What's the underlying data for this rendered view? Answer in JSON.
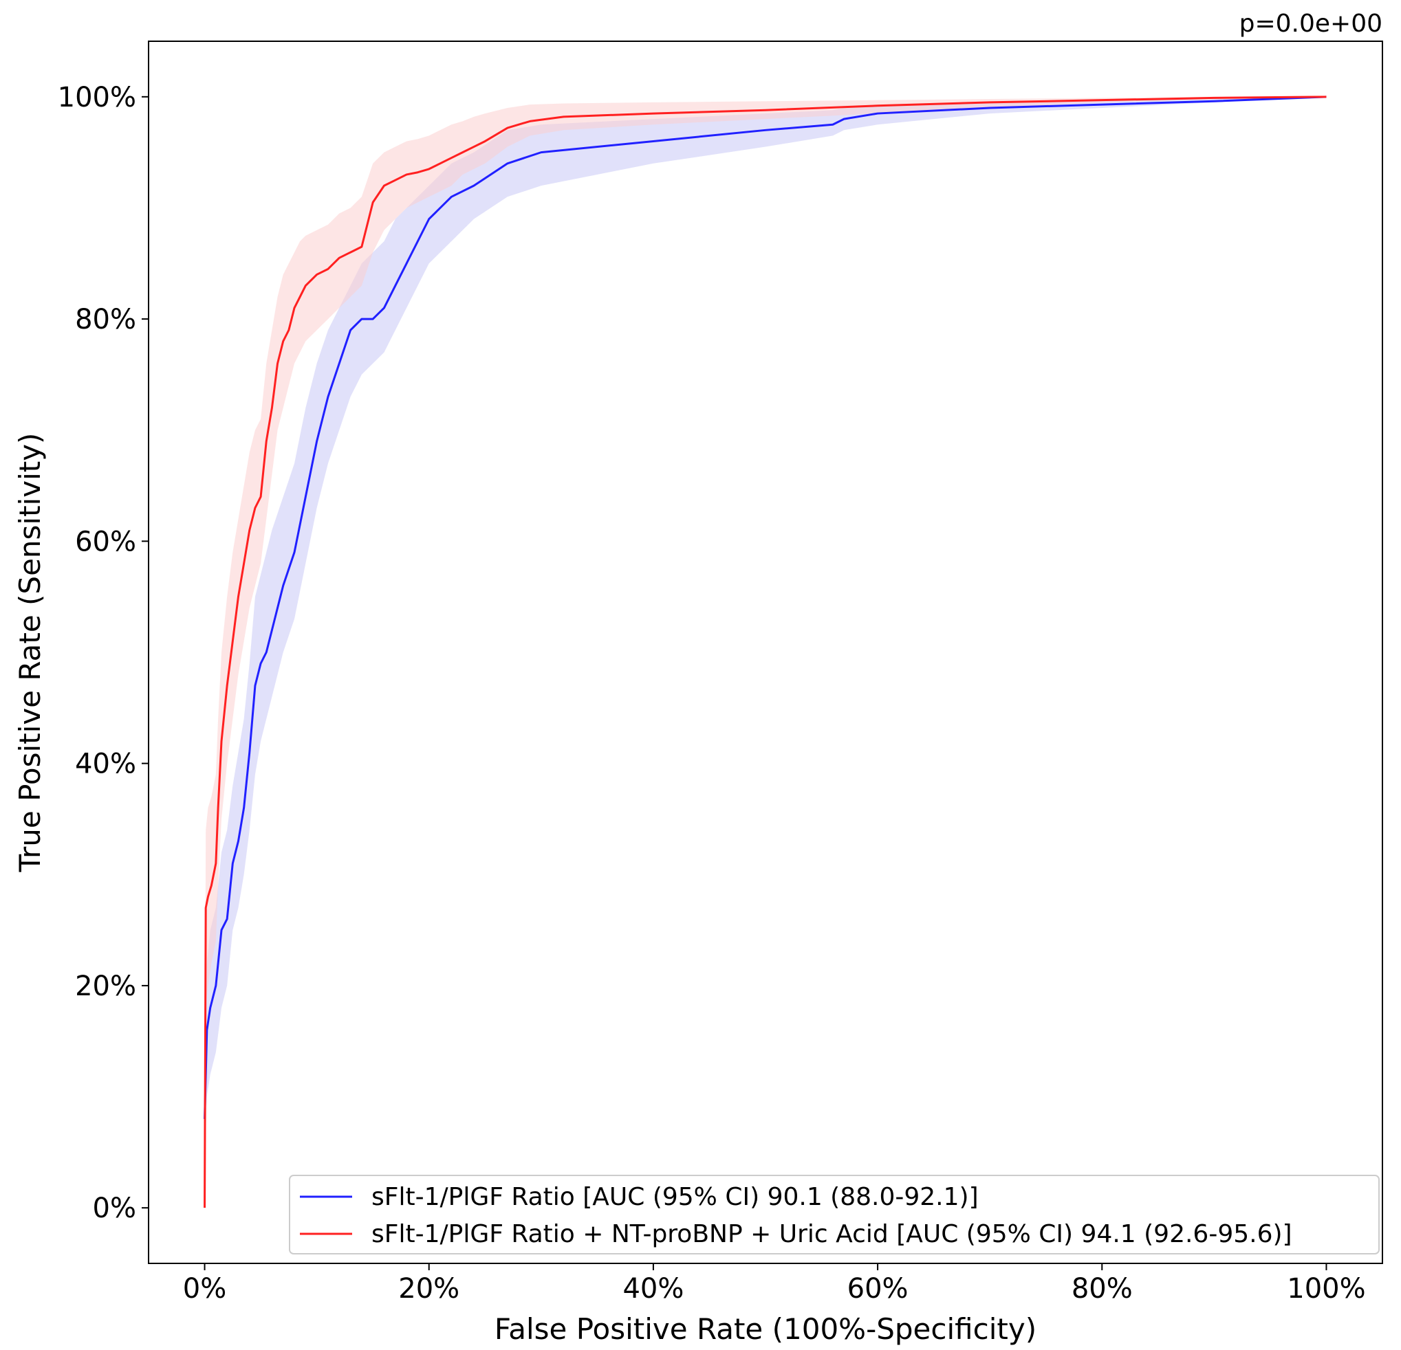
{
  "chart_data": {
    "type": "line",
    "title": "",
    "annotation": "p=0.0e+00",
    "xlabel": "False Positive Rate (100%-Specificity)",
    "ylabel": "True Positive Rate (Sensitivity)",
    "xlim": [
      -0.05,
      1.05
    ],
    "ylim": [
      -0.05,
      1.05
    ],
    "xticks": [
      0,
      0.2,
      0.4,
      0.6,
      0.8,
      1.0
    ],
    "xtick_labels": [
      "0%",
      "20%",
      "40%",
      "60%",
      "80%",
      "100%"
    ],
    "yticks": [
      0,
      0.2,
      0.4,
      0.6,
      0.8,
      1.0
    ],
    "ytick_labels": [
      "0%",
      "20%",
      "40%",
      "60%",
      "80%",
      "100%"
    ],
    "legend_position": "lower-right",
    "series": [
      {
        "name": "sFlt-1/PlGF Ratio [AUC (95% CI) 90.1 (88.0-92.1)]",
        "color": "#2020ff",
        "band_color": "#c8c8f5",
        "x": [
          0,
          0.002,
          0.005,
          0.01,
          0.015,
          0.02,
          0.025,
          0.03,
          0.035,
          0.04,
          0.045,
          0.05,
          0.055,
          0.06,
          0.07,
          0.08,
          0.09,
          0.1,
          0.11,
          0.12,
          0.13,
          0.14,
          0.15,
          0.16,
          0.17,
          0.18,
          0.2,
          0.22,
          0.24,
          0.27,
          0.3,
          0.4,
          0.5,
          0.56,
          0.57,
          0.6,
          0.7,
          0.8,
          0.9,
          1.0
        ],
        "y": [
          0.08,
          0.16,
          0.18,
          0.2,
          0.25,
          0.26,
          0.31,
          0.33,
          0.36,
          0.41,
          0.47,
          0.49,
          0.5,
          0.52,
          0.56,
          0.59,
          0.64,
          0.69,
          0.73,
          0.76,
          0.79,
          0.8,
          0.8,
          0.81,
          0.83,
          0.85,
          0.89,
          0.91,
          0.92,
          0.94,
          0.95,
          0.96,
          0.97,
          0.975,
          0.98,
          0.985,
          0.99,
          0.993,
          0.996,
          1.0
        ],
        "ci_lower": [
          0.04,
          0.1,
          0.12,
          0.14,
          0.18,
          0.2,
          0.25,
          0.27,
          0.3,
          0.34,
          0.39,
          0.42,
          0.44,
          0.46,
          0.5,
          0.53,
          0.58,
          0.63,
          0.67,
          0.7,
          0.73,
          0.75,
          0.76,
          0.77,
          0.79,
          0.81,
          0.85,
          0.87,
          0.89,
          0.91,
          0.92,
          0.94,
          0.955,
          0.965,
          0.97,
          0.975,
          0.985,
          0.99,
          0.995,
          1.0
        ],
        "ci_upper": [
          0.14,
          0.22,
          0.25,
          0.27,
          0.32,
          0.34,
          0.38,
          0.41,
          0.44,
          0.49,
          0.55,
          0.57,
          0.59,
          0.61,
          0.64,
          0.67,
          0.72,
          0.76,
          0.79,
          0.81,
          0.83,
          0.85,
          0.86,
          0.87,
          0.89,
          0.9,
          0.92,
          0.94,
          0.95,
          0.97,
          0.975,
          0.98,
          0.985,
          0.988,
          0.99,
          0.992,
          0.995,
          0.997,
          0.999,
          1.0
        ]
      },
      {
        "name": "sFlt-1/PlGF Ratio + NT-proBNP + Uric Acid [AUC (95% CI) 94.1 (92.6-95.6)]",
        "color": "#ff2020",
        "band_color": "#fbd0d0",
        "x": [
          0,
          0.001,
          0.003,
          0.006,
          0.01,
          0.012,
          0.015,
          0.02,
          0.025,
          0.03,
          0.035,
          0.04,
          0.045,
          0.05,
          0.055,
          0.06,
          0.065,
          0.07,
          0.075,
          0.08,
          0.085,
          0.09,
          0.1,
          0.11,
          0.12,
          0.13,
          0.14,
          0.15,
          0.16,
          0.17,
          0.18,
          0.19,
          0.2,
          0.21,
          0.22,
          0.23,
          0.24,
          0.25,
          0.27,
          0.29,
          0.32,
          0.4,
          0.5,
          0.6,
          0.7,
          0.8,
          0.9,
          1.0
        ],
        "y": [
          0,
          0.27,
          0.28,
          0.29,
          0.31,
          0.36,
          0.42,
          0.47,
          0.51,
          0.55,
          0.58,
          0.61,
          0.63,
          0.64,
          0.69,
          0.72,
          0.76,
          0.78,
          0.79,
          0.81,
          0.82,
          0.83,
          0.84,
          0.845,
          0.855,
          0.86,
          0.865,
          0.905,
          0.92,
          0.925,
          0.93,
          0.932,
          0.935,
          0.94,
          0.945,
          0.95,
          0.955,
          0.96,
          0.972,
          0.978,
          0.982,
          0.985,
          0.988,
          0.992,
          0.995,
          0.997,
          0.999,
          1.0
        ],
        "ci_lower": [
          0,
          0.18,
          0.2,
          0.22,
          0.24,
          0.29,
          0.35,
          0.4,
          0.44,
          0.48,
          0.51,
          0.54,
          0.56,
          0.58,
          0.62,
          0.66,
          0.7,
          0.72,
          0.74,
          0.76,
          0.77,
          0.78,
          0.79,
          0.8,
          0.81,
          0.82,
          0.83,
          0.86,
          0.88,
          0.89,
          0.9,
          0.905,
          0.91,
          0.915,
          0.92,
          0.93,
          0.935,
          0.94,
          0.955,
          0.965,
          0.97,
          0.975,
          0.98,
          0.985,
          0.99,
          0.995,
          0.998,
          1.0
        ],
        "ci_upper": [
          0.05,
          0.34,
          0.36,
          0.37,
          0.39,
          0.44,
          0.5,
          0.55,
          0.59,
          0.62,
          0.65,
          0.68,
          0.7,
          0.71,
          0.76,
          0.79,
          0.82,
          0.84,
          0.85,
          0.86,
          0.87,
          0.875,
          0.88,
          0.885,
          0.895,
          0.9,
          0.91,
          0.94,
          0.95,
          0.955,
          0.96,
          0.962,
          0.965,
          0.97,
          0.975,
          0.978,
          0.982,
          0.985,
          0.99,
          0.993,
          0.994,
          0.995,
          0.996,
          0.997,
          0.998,
          0.999,
          1.0,
          1.0
        ]
      }
    ]
  }
}
